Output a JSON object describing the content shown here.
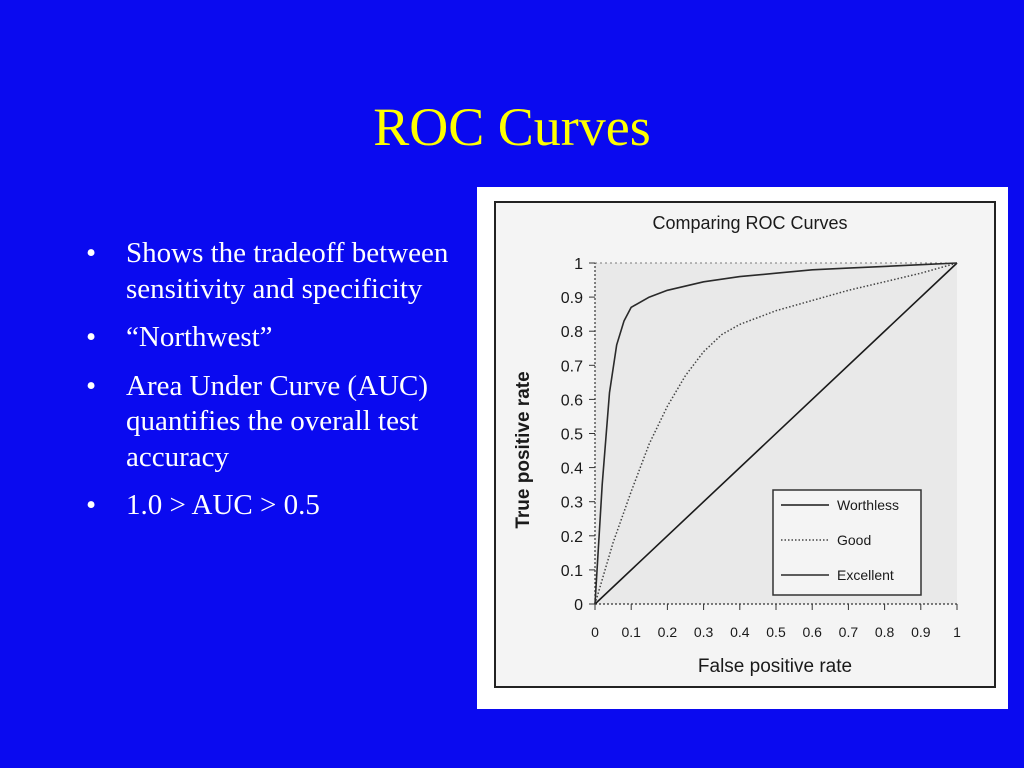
{
  "slide": {
    "title": "ROC Curves",
    "bullets": [
      "Shows the tradeoff between sensitivity and specificity",
      "“Northwest”",
      "Area Under Curve (AUC) quantifies the overall test accuracy",
      "1.0 > AUC > 0.5"
    ]
  },
  "colors": {
    "background": "#0a0af0",
    "title": "#ffff00",
    "text": "#ffffff"
  },
  "chart_data": {
    "type": "line",
    "title": "Comparing ROC Curves",
    "xlabel": "False positive rate",
    "ylabel": "True positive rate",
    "xlim": [
      0,
      1
    ],
    "ylim": [
      0,
      1
    ],
    "xticks": [
      "0",
      "0.1",
      "0.2",
      "0.3",
      "0.4",
      "0.5",
      "0.6",
      "0.7",
      "0.8",
      "0.9",
      "1"
    ],
    "yticks": [
      "0",
      "0.1",
      "0.2",
      "0.3",
      "0.4",
      "0.5",
      "0.6",
      "0.7",
      "0.8",
      "0.9",
      "1"
    ],
    "legend_position": "bottom-right",
    "series": [
      {
        "name": "Worthless",
        "x": [
          0,
          1
        ],
        "y": [
          0,
          1
        ]
      },
      {
        "name": "Good",
        "x": [
          0,
          0.05,
          0.1,
          0.15,
          0.2,
          0.25,
          0.3,
          0.35,
          0.4,
          0.5,
          0.6,
          0.7,
          0.8,
          0.9,
          1
        ],
        "y": [
          0,
          0.18,
          0.33,
          0.47,
          0.58,
          0.67,
          0.74,
          0.79,
          0.82,
          0.86,
          0.89,
          0.92,
          0.945,
          0.97,
          1
        ]
      },
      {
        "name": "Excellent",
        "x": [
          0,
          0.02,
          0.04,
          0.06,
          0.08,
          0.1,
          0.15,
          0.2,
          0.3,
          0.4,
          0.5,
          0.6,
          0.7,
          0.8,
          0.9,
          1
        ],
        "y": [
          0,
          0.35,
          0.62,
          0.76,
          0.83,
          0.87,
          0.9,
          0.92,
          0.945,
          0.96,
          0.97,
          0.98,
          0.985,
          0.99,
          0.995,
          1
        ]
      }
    ]
  }
}
